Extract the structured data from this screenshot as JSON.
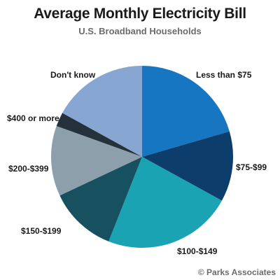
{
  "chart_data": {
    "type": "pie",
    "title": "Average Monthly Electricity Bill",
    "subtitle": "U.S. Broadband Households",
    "slices": [
      {
        "label": "Less than $75",
        "value": 20.5,
        "color": "#1676c2"
      },
      {
        "label": "$75-$99",
        "value": 12.5,
        "color": "#0d3e6b"
      },
      {
        "label": "$100-$149",
        "value": 23,
        "color": "#1aa3b3"
      },
      {
        "label": "$150-$199",
        "value": 12,
        "color": "#17515f"
      },
      {
        "label": "$200-$399",
        "value": 12.5,
        "color": "#8c9fab"
      },
      {
        "label": "$400 or more",
        "value": 2.5,
        "color": "#25313b"
      },
      {
        "label": "Don't know",
        "value": 17,
        "color": "#87a6d2"
      }
    ]
  },
  "credit": "© Parks Associates"
}
